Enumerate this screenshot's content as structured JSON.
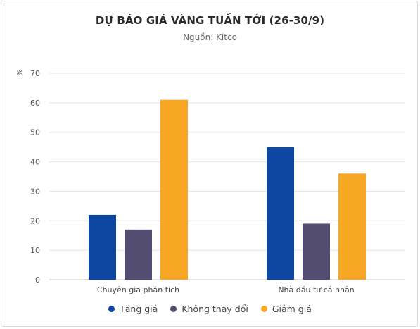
{
  "chart_data": {
    "type": "bar",
    "title": "DỰ BÁO GIÁ VÀNG TUẦN TỚI (26-30/9)",
    "subtitle": "Nguồn: Kitco",
    "ylabel": "%",
    "xlabel": "",
    "ylim": [
      0,
      70
    ],
    "yticks": [
      "0",
      "10",
      "20",
      "30",
      "40",
      "50",
      "60",
      "70"
    ],
    "grid": true,
    "legend_position": "bottom",
    "categories": [
      "Chuyên gia phân tích",
      "Nhà đầu tư cá nhân"
    ],
    "series": [
      {
        "name": "Tăng giá",
        "color": "#0d47a1",
        "values": [
          22,
          45
        ]
      },
      {
        "name": "Không thay đổi",
        "color": "#544d72",
        "values": [
          17,
          19
        ]
      },
      {
        "name": "Giảm giá",
        "color": "#f7a724",
        "values": [
          61,
          36
        ]
      }
    ]
  }
}
